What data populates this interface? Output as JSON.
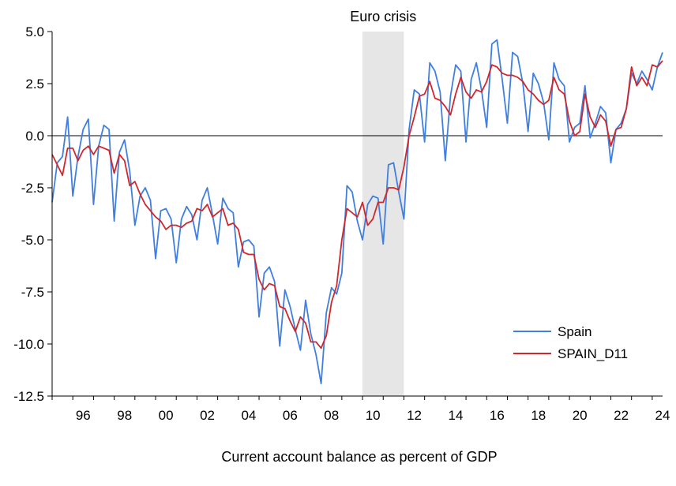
{
  "chart_data": {
    "type": "line",
    "title": "Euro crisis",
    "caption": "Current account balance as percent of GDP",
    "shaded_region": {
      "label": "Euro crisis",
      "x_start": 2010.0,
      "x_end": 2012.0,
      "color": "#e6e6e6"
    },
    "x_range": [
      1995.0,
      2024.5
    ],
    "ylim": [
      -12.5,
      5.0
    ],
    "y_ticks": [
      5.0,
      2.5,
      0.0,
      -2.5,
      -5.0,
      -7.5,
      -10.0,
      -12.5
    ],
    "y_tick_labels": [
      "5.0",
      "2.5",
      "0.0",
      "-2.5",
      "-5.0",
      "-7.5",
      "-10.0",
      "-12.5"
    ],
    "x_ticks": [
      1996,
      1998,
      2000,
      2002,
      2004,
      2006,
      2008,
      2010,
      2012,
      2014,
      2016,
      2018,
      2020,
      2022,
      2024
    ],
    "x_tick_labels": [
      "96",
      "98",
      "00",
      "02",
      "04",
      "06",
      "08",
      "10",
      "12",
      "14",
      "16",
      "18",
      "20",
      "22",
      "24"
    ],
    "zero_line": true,
    "legend_position": "lower-right",
    "series": [
      {
        "name": "Spain",
        "color": "#3f7fe0",
        "x": [
          1995.0,
          1995.25,
          1995.5,
          1995.75,
          1996.0,
          1996.25,
          1996.5,
          1996.75,
          1997.0,
          1997.25,
          1997.5,
          1997.75,
          1998.0,
          1998.25,
          1998.5,
          1998.75,
          1999.0,
          1999.25,
          1999.5,
          1999.75,
          2000.0,
          2000.25,
          2000.5,
          2000.75,
          2001.0,
          2001.25,
          2001.5,
          2001.75,
          2002.0,
          2002.25,
          2002.5,
          2002.75,
          2003.0,
          2003.25,
          2003.5,
          2003.75,
          2004.0,
          2004.25,
          2004.5,
          2004.75,
          2005.0,
          2005.25,
          2005.5,
          2005.75,
          2006.0,
          2006.25,
          2006.5,
          2006.75,
          2007.0,
          2007.25,
          2007.5,
          2007.75,
          2008.0,
          2008.25,
          2008.5,
          2008.75,
          2009.0,
          2009.25,
          2009.5,
          2009.75,
          2010.0,
          2010.25,
          2010.5,
          2010.75,
          2011.0,
          2011.25,
          2011.5,
          2011.75,
          2012.0,
          2012.25,
          2012.5,
          2012.75,
          2013.0,
          2013.25,
          2013.5,
          2013.75,
          2014.0,
          2014.25,
          2014.5,
          2014.75,
          2015.0,
          2015.25,
          2015.5,
          2015.75,
          2016.0,
          2016.25,
          2016.5,
          2016.75,
          2017.0,
          2017.25,
          2017.5,
          2017.75,
          2018.0,
          2018.25,
          2018.5,
          2018.75,
          2019.0,
          2019.25,
          2019.5,
          2019.75,
          2020.0,
          2020.25,
          2020.5,
          2020.75,
          2021.0,
          2021.25,
          2021.5,
          2021.75,
          2022.0,
          2022.25,
          2022.5,
          2022.75,
          2023.0,
          2023.25,
          2023.5,
          2023.75,
          2024.0,
          2024.25,
          2024.5
        ],
        "values": [
          -3.2,
          -1.3,
          -1.0,
          0.9,
          -2.9,
          -1.0,
          0.3,
          0.8,
          -3.3,
          -0.5,
          0.5,
          0.3,
          -4.1,
          -0.8,
          -0.2,
          -1.7,
          -4.3,
          -2.9,
          -2.5,
          -3.1,
          -5.9,
          -3.6,
          -3.5,
          -4.0,
          -6.1,
          -4.0,
          -3.4,
          -3.8,
          -5.0,
          -3.1,
          -2.5,
          -3.8,
          -5.2,
          -3.0,
          -3.5,
          -3.7,
          -6.3,
          -5.1,
          -5.0,
          -5.3,
          -8.7,
          -6.6,
          -6.3,
          -7.0,
          -10.1,
          -7.4,
          -8.2,
          -9.3,
          -10.3,
          -7.9,
          -9.5,
          -10.5,
          -11.9,
          -8.5,
          -7.3,
          -7.6,
          -6.6,
          -2.4,
          -2.7,
          -4.1,
          -5.0,
          -3.3,
          -2.9,
          -3.0,
          -5.2,
          -1.4,
          -1.3,
          -2.7,
          -4.0,
          0.3,
          2.2,
          2.0,
          -0.3,
          3.5,
          3.1,
          2.1,
          -1.2,
          1.9,
          3.4,
          3.1,
          -0.3,
          2.7,
          3.5,
          2.2,
          0.4,
          4.4,
          4.6,
          2.7,
          0.6,
          4.0,
          3.8,
          2.5,
          0.2,
          3.0,
          2.5,
          1.6,
          -0.2,
          3.5,
          2.7,
          2.4,
          -0.3,
          0.4,
          0.6,
          2.4,
          -0.1,
          0.6,
          1.4,
          1.1,
          -1.3,
          0.3,
          0.6,
          1.3,
          3.0,
          2.5,
          3.1,
          2.7,
          2.2,
          3.3,
          4.0
        ]
      },
      {
        "name": "SPAIN_D11",
        "color": "#d0272d",
        "x": [
          1995.0,
          1995.25,
          1995.5,
          1995.75,
          1996.0,
          1996.25,
          1996.5,
          1996.75,
          1997.0,
          1997.25,
          1997.5,
          1997.75,
          1998.0,
          1998.25,
          1998.5,
          1998.75,
          1999.0,
          1999.25,
          1999.5,
          1999.75,
          2000.0,
          2000.25,
          2000.5,
          2000.75,
          2001.0,
          2001.25,
          2001.5,
          2001.75,
          2002.0,
          2002.25,
          2002.5,
          2002.75,
          2003.0,
          2003.25,
          2003.5,
          2003.75,
          2004.0,
          2004.25,
          2004.5,
          2004.75,
          2005.0,
          2005.25,
          2005.5,
          2005.75,
          2006.0,
          2006.25,
          2006.5,
          2006.75,
          2007.0,
          2007.25,
          2007.5,
          2007.75,
          2008.0,
          2008.25,
          2008.5,
          2008.75,
          2009.0,
          2009.25,
          2009.5,
          2009.75,
          2010.0,
          2010.25,
          2010.5,
          2010.75,
          2011.0,
          2011.25,
          2011.5,
          2011.75,
          2012.0,
          2012.25,
          2012.5,
          2012.75,
          2013.0,
          2013.25,
          2013.5,
          2013.75,
          2014.0,
          2014.25,
          2014.5,
          2014.75,
          2015.0,
          2015.25,
          2015.5,
          2015.75,
          2016.0,
          2016.25,
          2016.5,
          2016.75,
          2017.0,
          2017.25,
          2017.5,
          2017.75,
          2018.0,
          2018.25,
          2018.5,
          2018.75,
          2019.0,
          2019.25,
          2019.5,
          2019.75,
          2020.0,
          2020.25,
          2020.5,
          2020.75,
          2021.0,
          2021.25,
          2021.5,
          2021.75,
          2022.0,
          2022.25,
          2022.5,
          2022.75,
          2023.0,
          2023.25,
          2023.5,
          2023.75,
          2024.0,
          2024.25,
          2024.5
        ],
        "values": [
          -0.9,
          -1.4,
          -1.9,
          -0.6,
          -0.6,
          -1.2,
          -0.7,
          -0.5,
          -0.9,
          -0.5,
          -0.6,
          -0.7,
          -1.8,
          -0.9,
          -1.2,
          -2.4,
          -2.2,
          -2.8,
          -3.3,
          -3.6,
          -3.9,
          -4.1,
          -4.5,
          -4.3,
          -4.3,
          -4.4,
          -4.2,
          -4.1,
          -3.5,
          -3.6,
          -3.3,
          -3.9,
          -3.7,
          -3.5,
          -4.3,
          -4.2,
          -4.5,
          -5.6,
          -5.7,
          -5.7,
          -6.9,
          -7.4,
          -7.1,
          -7.2,
          -8.2,
          -8.3,
          -8.9,
          -9.4,
          -8.7,
          -9.0,
          -9.9,
          -9.9,
          -10.2,
          -9.6,
          -8.0,
          -7.2,
          -5.0,
          -3.5,
          -3.7,
          -3.9,
          -3.2,
          -4.3,
          -4.0,
          -3.2,
          -3.2,
          -2.5,
          -2.5,
          -2.6,
          -1.5,
          0.0,
          0.9,
          1.9,
          2.0,
          2.6,
          1.8,
          1.7,
          1.4,
          1.0,
          2.0,
          2.8,
          2.1,
          1.8,
          2.2,
          2.1,
          2.6,
          3.4,
          3.3,
          3.0,
          2.9,
          2.9,
          2.8,
          2.6,
          2.2,
          2.0,
          1.7,
          1.5,
          1.7,
          2.8,
          2.2,
          2.0,
          0.7,
          0.0,
          0.2,
          2.0,
          0.9,
          0.4,
          1.0,
          0.7,
          -0.5,
          0.3,
          0.4,
          1.3,
          3.3,
          2.4,
          2.8,
          2.4,
          3.4,
          3.3,
          3.6
        ]
      }
    ]
  }
}
